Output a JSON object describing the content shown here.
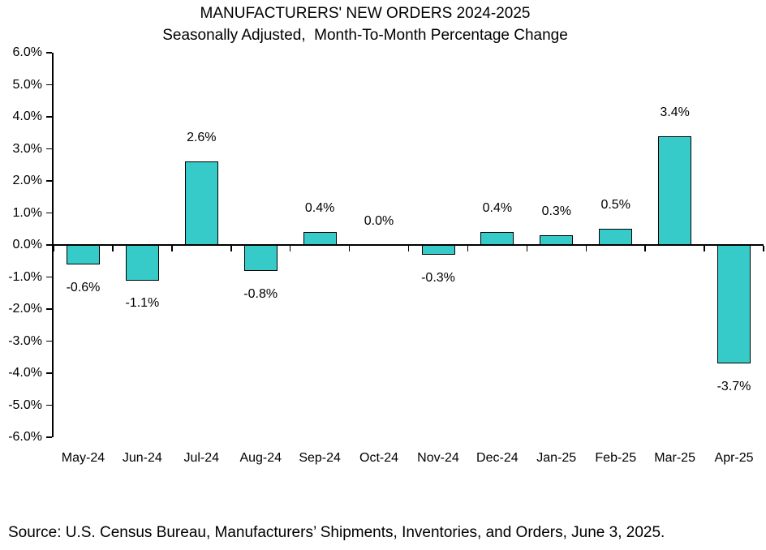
{
  "title": "MANUFACTURERS' NEW ORDERS 2024-2025",
  "subtitle": "Seasonally Adjusted,  Month-To-Month Percentage Change",
  "source": "Source: U.S. Census Bureau, Manufacturers’ Shipments, Inventories, and Orders, June 3, 2025.",
  "chart_data": {
    "type": "bar",
    "title": "MANUFACTURERS' NEW ORDERS 2024-2025",
    "subtitle": "Seasonally Adjusted,  Month-To-Month Percentage Change",
    "categories": [
      "May-24",
      "Jun-24",
      "Jul-24",
      "Aug-24",
      "Sep-24",
      "Oct-24",
      "Nov-24",
      "Dec-24",
      "Jan-25",
      "Feb-25",
      "Mar-25",
      "Apr-25"
    ],
    "values": [
      -0.6,
      -1.1,
      2.6,
      -0.8,
      0.4,
      0.0,
      -0.3,
      0.4,
      0.3,
      0.5,
      3.4,
      -3.7
    ],
    "data_labels": [
      "-0.6%",
      "-1.1%",
      "2.6%",
      "-0.8%",
      "0.4%",
      "0.0%",
      "-0.3%",
      "0.4%",
      "0.3%",
      "0.5%",
      "3.4%",
      "-3.7%"
    ],
    "xlabel": "",
    "ylabel": "",
    "ylim": [
      -6.0,
      6.0
    ],
    "y_tick_step": 1.0,
    "y_tick_labels": [
      "6.0%",
      "5.0%",
      "4.0%",
      "3.0%",
      "2.0%",
      "1.0%",
      "0.0%",
      "-1.0%",
      "-2.0%",
      "-3.0%",
      "-4.0%",
      "-5.0%",
      "-6.0%"
    ],
    "grid": false,
    "legend": "none",
    "bar_color": "#36CBC9",
    "bar_border_color": "#000000",
    "axis_color": "#000000",
    "text_color": "#000000"
  }
}
